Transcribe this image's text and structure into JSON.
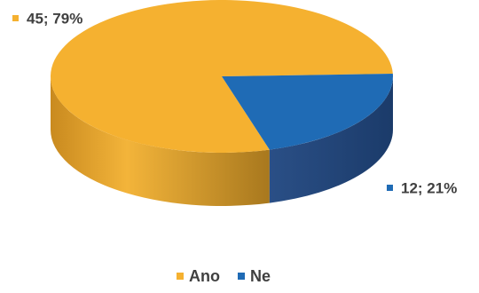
{
  "chart_data": {
    "type": "pie",
    "style": "3d",
    "categories": [
      "Ano",
      "Ne"
    ],
    "values": [
      45,
      12
    ],
    "percent_labels": [
      "79%",
      "21%"
    ],
    "data_labels": [
      "45; 79%",
      "12; 21%"
    ],
    "colors": [
      "#F5B130",
      "#1F6BB5"
    ],
    "legend": {
      "position": "bottom",
      "entries": [
        "Ano",
        "Ne"
      ]
    },
    "title": ""
  }
}
